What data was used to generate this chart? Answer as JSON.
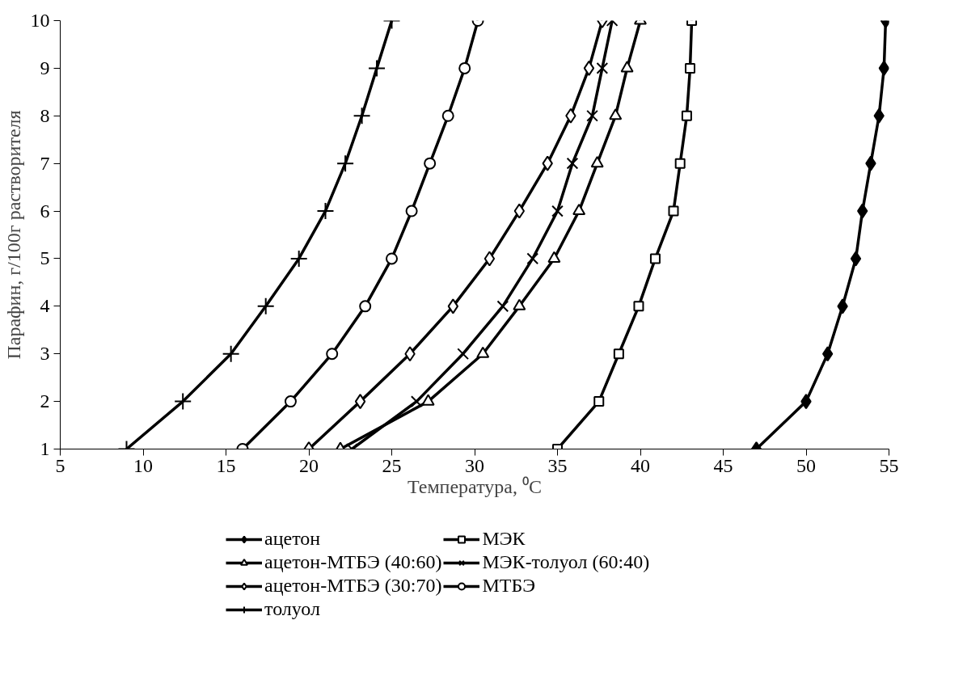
{
  "chart_data": {
    "type": "line",
    "xlabel": "Температура, ⁰C",
    "ylabel": "Парафин, г/100г растворителя",
    "xlim": [
      5,
      55
    ],
    "xticks": [
      5,
      10,
      15,
      20,
      25,
      30,
      35,
      40,
      45,
      50,
      55
    ],
    "ylim": [
      1,
      10
    ],
    "yticks": [
      1,
      2,
      3,
      4,
      5,
      6,
      7,
      8,
      9,
      10
    ],
    "grid": false,
    "legend": "bottom",
    "line_style": "solid",
    "series": [
      {
        "name": "ацетон",
        "color": "#000000",
        "marker": "diamond",
        "x": [
          47,
          50,
          51.3,
          52.2,
          53.0,
          53.4,
          53.9,
          54.4,
          54.7,
          54.8
        ],
        "values": [
          1,
          2,
          3,
          4,
          5,
          6,
          7,
          8,
          9,
          10
        ]
      },
      {
        "name": "МЭК",
        "color": "#000000",
        "marker": "square_open",
        "x": [
          35.0,
          37.5,
          38.7,
          39.9,
          40.9,
          42.0,
          42.4,
          42.8,
          43.0,
          43.1
        ],
        "values": [
          1,
          2,
          3,
          4,
          5,
          6,
          7,
          8,
          9,
          10
        ]
      },
      {
        "name": "ацетон-МТБЭ (40:60)",
        "color": "#000000",
        "marker": "triangle_open",
        "x": [
          21.9,
          27.2,
          30.5,
          32.7,
          34.8,
          36.3,
          37.4,
          38.5,
          39.2,
          40.0
        ],
        "values": [
          1,
          2,
          3,
          4,
          5,
          6,
          7,
          8,
          9,
          10
        ]
      },
      {
        "name": "МЭК-толуол (60:40)",
        "color": "#000000",
        "marker": "x",
        "x": [
          22.6,
          26.5,
          29.3,
          31.7,
          33.5,
          35.0,
          35.9,
          37.1,
          37.7,
          38.3
        ],
        "values": [
          1,
          2,
          3,
          4,
          5,
          6,
          7,
          8,
          9,
          10
        ]
      },
      {
        "name": "ацетон-МТБЭ (30:70)",
        "color": "#000000",
        "marker": "diamond_open",
        "x": [
          20.0,
          23.1,
          26.1,
          28.7,
          30.9,
          32.7,
          34.4,
          35.8,
          36.9,
          37.7
        ],
        "values": [
          1,
          2,
          3,
          4,
          5,
          6,
          7,
          8,
          9,
          10
        ]
      },
      {
        "name": "МТБЭ",
        "color": "#000000",
        "marker": "circle_open",
        "x": [
          16,
          18.9,
          21.4,
          23.4,
          25.0,
          26.2,
          27.3,
          28.4,
          29.4,
          30.2
        ],
        "values": [
          1,
          2,
          3,
          4,
          5,
          6,
          7,
          8,
          9,
          10
        ]
      },
      {
        "name": "толуол",
        "color": "#000000",
        "marker": "cross",
        "x": [
          9.0,
          12.4,
          15.3,
          17.4,
          19.4,
          21.0,
          22.2,
          23.2,
          24.1,
          25.0
        ],
        "values": [
          1,
          2,
          3,
          4,
          5,
          6,
          7,
          8,
          9,
          10
        ]
      }
    ]
  }
}
